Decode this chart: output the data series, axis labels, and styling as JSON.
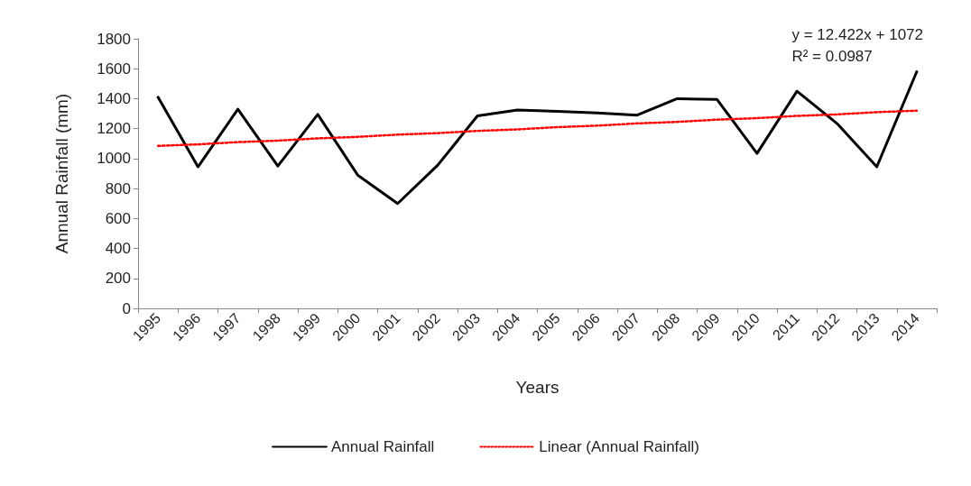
{
  "chart_data": {
    "type": "line",
    "xlabel": "Years",
    "ylabel": "Annual Rainfall (mm)",
    "categories": [
      "1995",
      "1996",
      "1997",
      "1998",
      "1999",
      "2000",
      "2001",
      "2002",
      "2003",
      "2004",
      "2005",
      "2006",
      "2007",
      "2008",
      "2009",
      "2010",
      "2011",
      "2012",
      "2013",
      "2014"
    ],
    "series": [
      {
        "name": "Annual Rainfall",
        "color": "#000000",
        "line_style": "solid",
        "values": [
          1410,
          945,
          1330,
          950,
          1295,
          890,
          700,
          955,
          1285,
          1325,
          1315,
          1305,
          1290,
          1400,
          1395,
          1035,
          1450,
          1235,
          945,
          1580
        ]
      },
      {
        "name": "Linear (Annual Rainfall)",
        "color": "#ff0000",
        "line_style": "dotted",
        "values": [
          1085,
          1095,
          1110,
          1120,
          1135,
          1145,
          1160,
          1170,
          1185,
          1195,
          1210,
          1220,
          1235,
          1245,
          1260,
          1270,
          1285,
          1295,
          1310,
          1320
        ]
      }
    ],
    "ylim": [
      0,
      1800
    ],
    "yticks": [
      0,
      200,
      400,
      600,
      800,
      1000,
      1200,
      1400,
      1600,
      1800
    ],
    "grid": false,
    "legend": "bottom",
    "marker": "none",
    "annotations": [
      "y = 12.422x + 1072",
      "R² = 0.0987"
    ]
  }
}
